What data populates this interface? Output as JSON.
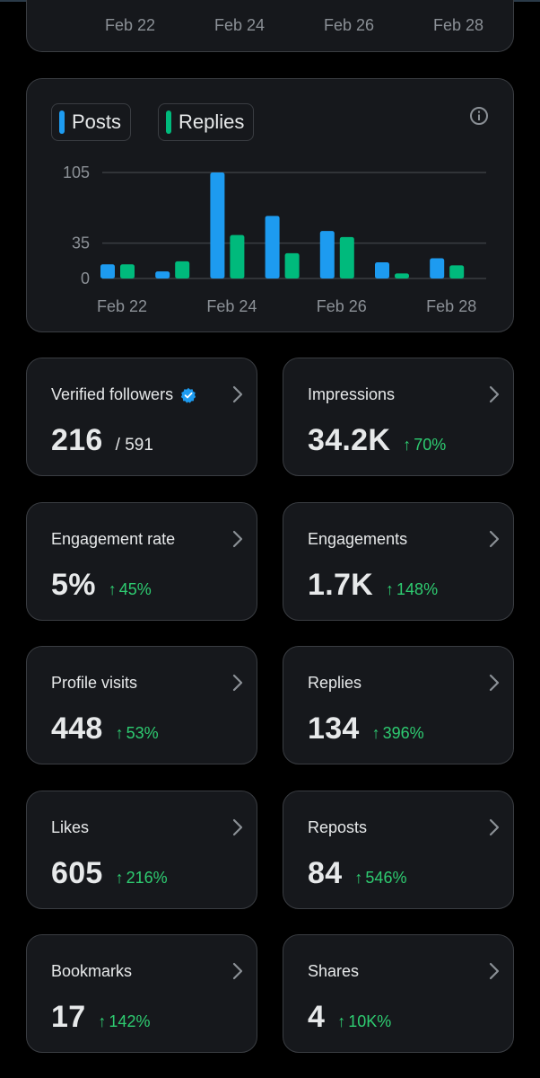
{
  "previous_chart": {
    "x_ticks": [
      "Feb 22",
      "Feb 24",
      "Feb 26",
      "Feb 28"
    ]
  },
  "activity_chart": {
    "legend": [
      {
        "label": "Posts",
        "color": "#1d9bf0"
      },
      {
        "label": "Replies",
        "color": "#00ba7c"
      }
    ],
    "info_icon": "info-icon",
    "chart_data": {
      "type": "bar",
      "categories": [
        "Feb 22",
        "Feb 23",
        "Feb 24",
        "Feb 25",
        "Feb 26",
        "Feb 27",
        "Feb 28"
      ],
      "x_tick_labels": [
        "Feb 22",
        "Feb 24",
        "Feb 26",
        "Feb 28"
      ],
      "y_tick_labels": [
        "105",
        "35",
        "0"
      ],
      "y_ticks": [
        105,
        35,
        0
      ],
      "ylim": [
        0,
        105
      ],
      "grid": true,
      "legend_position": "top-left",
      "series": [
        {
          "name": "Posts",
          "color": "#1d9bf0",
          "values": [
            14,
            7,
            105,
            62,
            47,
            16,
            20
          ]
        },
        {
          "name": "Replies",
          "color": "#00ba7c",
          "values": [
            14,
            17,
            43,
            25,
            41,
            5,
            13
          ]
        }
      ]
    }
  },
  "stats": [
    {
      "label": "Verified followers",
      "value": "216",
      "sub": "/ 591",
      "verified": true
    },
    {
      "label": "Impressions",
      "value": "34.2K",
      "change": "70%"
    },
    {
      "label": "Engagement rate",
      "value": "5%",
      "change": "45%"
    },
    {
      "label": "Engagements",
      "value": "1.7K",
      "change": "148%"
    },
    {
      "label": "Profile visits",
      "value": "448",
      "change": "53%"
    },
    {
      "label": "Replies",
      "value": "134",
      "change": "396%"
    },
    {
      "label": "Likes",
      "value": "605",
      "change": "216%"
    },
    {
      "label": "Reposts",
      "value": "84",
      "change": "546%"
    },
    {
      "label": "Bookmarks",
      "value": "17",
      "change": "142%"
    },
    {
      "label": "Shares",
      "value": "4",
      "change": "10K%"
    }
  ],
  "up_arrow": "↑"
}
